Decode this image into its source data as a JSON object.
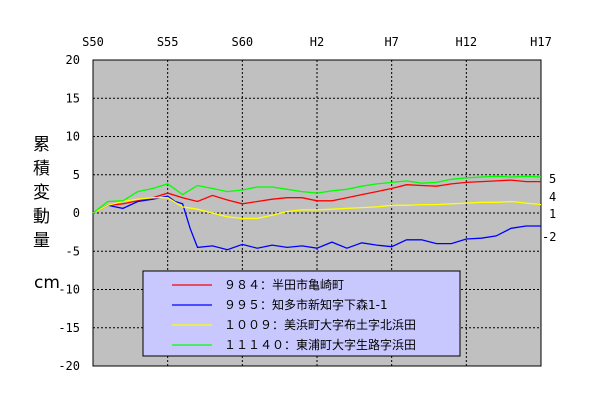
{
  "chart_data": {
    "type": "line",
    "ylabel": "累積変動量",
    "unit": "cm",
    "x_ticks": [
      "S50",
      "S55",
      "S60",
      "H2",
      "H7",
      "H12",
      "H17"
    ],
    "xlim": [
      1975,
      2005
    ],
    "ylim": [
      -20,
      20
    ],
    "y_ticks": [
      20,
      15,
      10,
      5,
      0,
      -5,
      -10,
      -15,
      -20
    ],
    "grid": true,
    "legend_placement": "bottom-center",
    "plot_background": "#c0c0c0",
    "legend_background": "#c8c8ff",
    "series": [
      {
        "name": "９８４：半田市亀崎町",
        "color": "#ff0000",
        "end_label": "4",
        "x": [
          1975,
          1976,
          1977,
          1978,
          1979,
          1980,
          1981,
          1982,
          1983,
          1984,
          1985,
          1986,
          1987,
          1988,
          1989,
          1990,
          1991,
          1992,
          1993,
          1994,
          1995,
          1996,
          1997,
          1998,
          1999,
          2000,
          2001,
          2002,
          2003,
          2004,
          2005
        ],
        "y": [
          0,
          1.0,
          1.2,
          1.6,
          2.0,
          2.6,
          2.0,
          1.5,
          2.3,
          1.7,
          1.2,
          1.5,
          1.8,
          2.0,
          2.0,
          1.6,
          1.6,
          2.0,
          2.4,
          2.8,
          3.2,
          3.7,
          3.6,
          3.5,
          3.8,
          4.0,
          4.1,
          4.2,
          4.3,
          4.1,
          4.1
        ]
      },
      {
        "name": "９９５：知多市新知字下森1-1",
        "color": "#0000ff",
        "end_label": "-2",
        "x": [
          1975,
          1976,
          1977,
          1978,
          1979,
          1980,
          1980.5,
          1981,
          1981.5,
          1982,
          1983,
          1984,
          1985,
          1986,
          1987,
          1988,
          1989,
          1990,
          1991,
          1992,
          1993,
          1994,
          1995,
          1996,
          1997,
          1998,
          1999,
          2000,
          2001,
          2002,
          2003,
          2004,
          2005
        ],
        "y": [
          0,
          1.0,
          0.6,
          1.5,
          1.8,
          2.2,
          1.5,
          1.2,
          -2.0,
          -4.5,
          -4.3,
          -4.8,
          -4.1,
          -4.6,
          -4.2,
          -4.5,
          -4.3,
          -4.6,
          -3.8,
          -4.6,
          -3.9,
          -4.2,
          -4.4,
          -3.5,
          -3.5,
          -4.0,
          -4.0,
          -3.4,
          -3.3,
          -3.0,
          -2.0,
          -1.7,
          -1.7
        ]
      },
      {
        "name": "１００９：美浜町大字布土字北浜田",
        "color": "#ffff00",
        "end_label": "1",
        "x": [
          1975,
          1976,
          1977,
          1978,
          1979,
          1980,
          1981,
          1982,
          1983,
          1984,
          1985,
          1986,
          1987,
          1988,
          1989,
          1990,
          1991,
          1992,
          1993,
          1994,
          1995,
          1996,
          1997,
          1998,
          1999,
          2000,
          2001,
          2002,
          2003,
          2004,
          2005
        ],
        "y": [
          0,
          1.0,
          1.5,
          1.8,
          2.0,
          2.0,
          0.8,
          0.5,
          0,
          -0.5,
          -0.7,
          -0.7,
          -0.3,
          0.2,
          0.4,
          0.4,
          0.5,
          0.6,
          0.7,
          0.8,
          1.0,
          1.0,
          1.1,
          1.1,
          1.2,
          1.3,
          1.4,
          1.4,
          1.5,
          1.3,
          1.1
        ]
      },
      {
        "name": "１１１４０：東浦町大字生路字浜田",
        "color": "#00ff00",
        "end_label": "5",
        "x": [
          1975,
          1976,
          1977,
          1978,
          1979,
          1980,
          1981,
          1982,
          1983,
          1984,
          1985,
          1986,
          1987,
          1988,
          1989,
          1990,
          1991,
          1992,
          1993,
          1994,
          1995,
          1996,
          1997,
          1998,
          1999,
          2000,
          2001,
          2002,
          2003,
          2004,
          2005
        ],
        "y": [
          0,
          1.5,
          1.6,
          2.8,
          3.2,
          3.8,
          2.4,
          3.6,
          3.2,
          2.8,
          3.0,
          3.4,
          3.4,
          3.1,
          2.8,
          2.6,
          2.9,
          3.1,
          3.5,
          3.8,
          4.0,
          4.2,
          3.9,
          4.0,
          4.4,
          4.6,
          4.7,
          4.8,
          4.7,
          4.8,
          4.7
        ]
      }
    ]
  }
}
